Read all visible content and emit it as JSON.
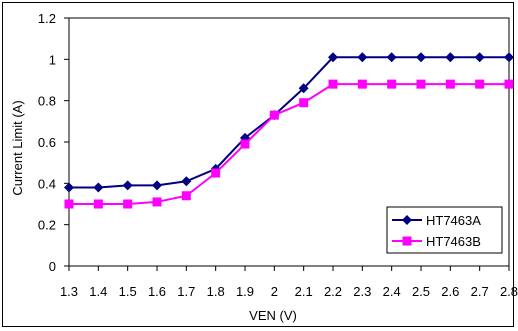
{
  "chart_data": {
    "type": "line",
    "xlabel": "VEN (V)",
    "ylabel": "Current Limit (A)",
    "categories": [
      "1.3",
      "1.4",
      "1.5",
      "1.6",
      "1.7",
      "1.8",
      "1.9",
      "2",
      "2.1",
      "2.2",
      "2.3",
      "2.4",
      "2.5",
      "2.6",
      "2.7",
      "2.8"
    ],
    "ylim": [
      0,
      1.2
    ],
    "yticks": [
      "0",
      "0.2",
      "0.4",
      "0.6",
      "0.8",
      "1",
      "1.2"
    ],
    "grid": false,
    "legend_position": "bottom-right",
    "series": [
      {
        "name": "HT7463A",
        "color": "#000080",
        "marker": "diamond",
        "values": [
          0.38,
          0.38,
          0.39,
          0.39,
          0.41,
          0.47,
          0.62,
          0.73,
          0.86,
          1.01,
          1.01,
          1.01,
          1.01,
          1.01,
          1.01,
          1.01
        ]
      },
      {
        "name": "HT7463B",
        "color": "#ff00ff",
        "marker": "square",
        "values": [
          0.3,
          0.3,
          0.3,
          0.31,
          0.34,
          0.45,
          0.59,
          0.73,
          0.79,
          0.88,
          0.88,
          0.88,
          0.88,
          0.88,
          0.88,
          0.88
        ]
      }
    ]
  }
}
